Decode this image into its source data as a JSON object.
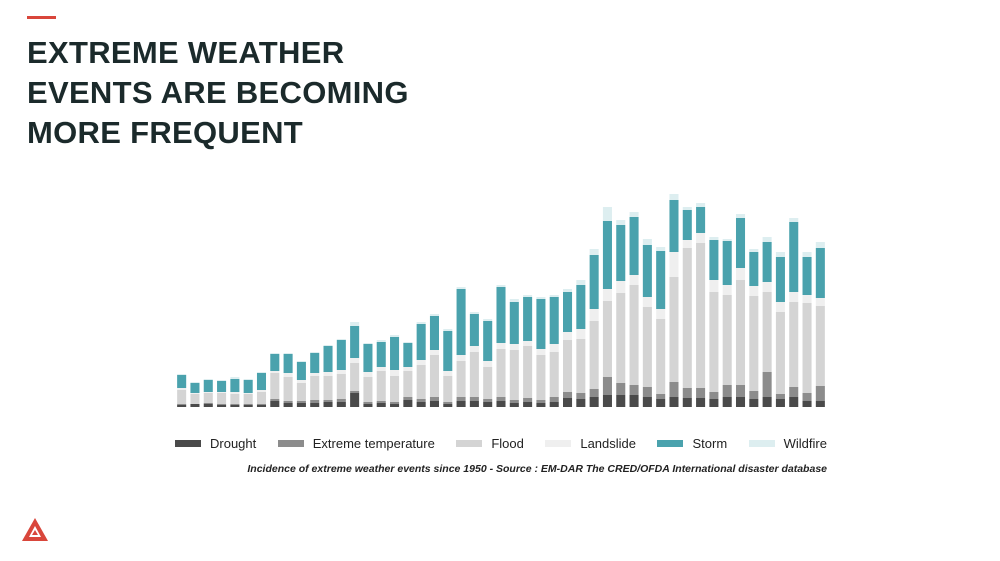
{
  "title_lines": [
    "EXTREME WEATHER",
    "EVENTS ARE BECOMING",
    "MORE FREQUENT"
  ],
  "chart_data": {
    "type": "stacked-bar",
    "caption": "Incidence of extreme weather events since 1950 - Source : EM-DAR The CRED/OFDA International disaster database",
    "series": [
      {
        "name": "Drought",
        "color": "#4a4a4a",
        "values": [
          2,
          3,
          3,
          2,
          2,
          2,
          2,
          6,
          4,
          4,
          4,
          5,
          5,
          14,
          3,
          4,
          3,
          7,
          5,
          6,
          3,
          6,
          6,
          5,
          6,
          4,
          5,
          4,
          5,
          9,
          8,
          10,
          12,
          12,
          12,
          10,
          8,
          10,
          9,
          9,
          8,
          10,
          10,
          8,
          10,
          8,
          10,
          6,
          6
        ]
      },
      {
        "name": "Extreme temperature",
        "color": "#8c8c8c",
        "values": [
          1,
          0,
          1,
          1,
          1,
          1,
          1,
          2,
          2,
          2,
          3,
          2,
          3,
          2,
          2,
          2,
          2,
          3,
          3,
          4,
          2,
          4,
          4,
          3,
          4,
          3,
          4,
          3,
          5,
          6,
          6,
          8,
          18,
          12,
          10,
          10,
          5,
          15,
          10,
          10,
          7,
          12,
          12,
          8,
          25,
          5,
          10,
          8,
          15
        ]
      },
      {
        "name": "Flood",
        "color": "#d4d4d4",
        "values": [
          14,
          10,
          10,
          11,
          10,
          10,
          12,
          26,
          24,
          18,
          24,
          24,
          25,
          28,
          25,
          30,
          26,
          26,
          34,
          42,
          26,
          36,
          45,
          32,
          48,
          50,
          52,
          45,
          45,
          52,
          54,
          68,
          76,
          90,
          100,
          80,
          75,
          105,
          140,
          145,
          100,
          90,
          105,
          95,
          80,
          82,
          85,
          90,
          80
        ]
      },
      {
        "name": "Landslide",
        "color": "#efefef",
        "values": [
          2,
          1,
          1,
          1,
          2,
          1,
          2,
          2,
          4,
          3,
          3,
          4,
          4,
          5,
          5,
          4,
          6,
          4,
          5,
          5,
          5,
          6,
          6,
          6,
          6,
          6,
          5,
          6,
          8,
          8,
          10,
          12,
          12,
          12,
          10,
          10,
          10,
          25,
          8,
          10,
          12,
          10,
          12,
          10,
          10,
          10,
          10,
          8,
          8
        ]
      },
      {
        "name": "Storm",
        "color": "#4aa2ad",
        "values": [
          13,
          10,
          12,
          11,
          13,
          13,
          17,
          17,
          19,
          18,
          20,
          26,
          30,
          32,
          28,
          25,
          33,
          24,
          36,
          34,
          40,
          66,
          32,
          40,
          56,
          42,
          44,
          50,
          47,
          40,
          44,
          54,
          68,
          56,
          58,
          52,
          58,
          52,
          30,
          26,
          40,
          44,
          50,
          34,
          40,
          45,
          70,
          38,
          50
        ]
      },
      {
        "name": "Wildfire",
        "color": "#ddeef0",
        "values": [
          1,
          1,
          1,
          1,
          2,
          1,
          1,
          1,
          1,
          1,
          1,
          1,
          1,
          4,
          1,
          2,
          2,
          1,
          2,
          2,
          2,
          2,
          2,
          2,
          2,
          3,
          2,
          2,
          2,
          3,
          5,
          6,
          14,
          5,
          5,
          6,
          4,
          6,
          3,
          4,
          3,
          2,
          4,
          3,
          5,
          5,
          4,
          5,
          6
        ]
      }
    ]
  }
}
